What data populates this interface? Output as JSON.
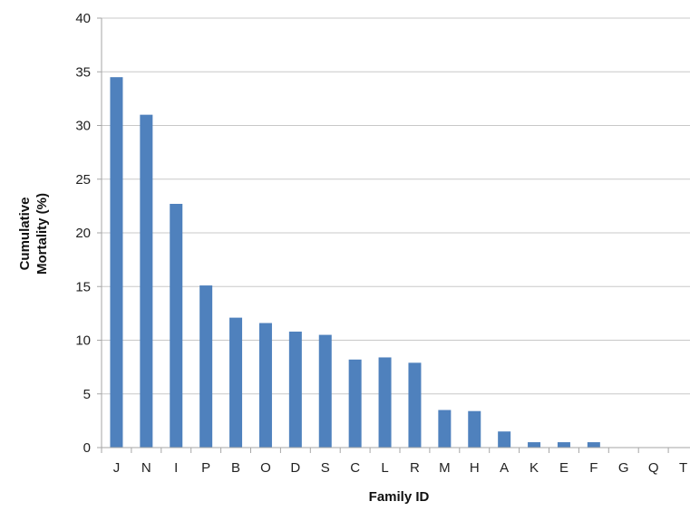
{
  "chart_data": {
    "type": "bar",
    "title": "",
    "xlabel": "Family ID",
    "ylabel_lines": [
      "Cumulative",
      "Mortality (%)"
    ],
    "categories": [
      "J",
      "N",
      "I",
      "P",
      "B",
      "O",
      "D",
      "S",
      "C",
      "L",
      "R",
      "M",
      "H",
      "A",
      "K",
      "E",
      "F",
      "G",
      "Q",
      "T"
    ],
    "values": [
      34.5,
      31.0,
      22.7,
      15.1,
      12.1,
      11.6,
      10.8,
      10.5,
      8.2,
      8.4,
      7.9,
      3.5,
      3.4,
      1.5,
      0.5,
      0.5,
      0.5,
      0,
      0,
      0
    ],
    "ylim": [
      0,
      40
    ],
    "yticks": [
      0,
      5,
      10,
      15,
      20,
      25,
      30,
      35,
      40
    ],
    "grid": true,
    "legend": "none",
    "bar_color": "#4f81bd",
    "grid_color": "#c8c8c8",
    "axis_color": "#a6a6a6"
  }
}
